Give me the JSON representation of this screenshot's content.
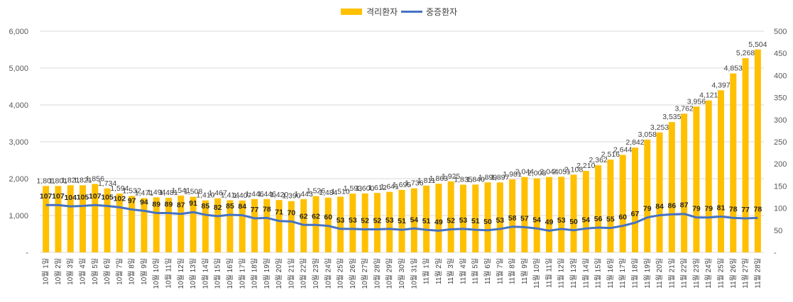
{
  "chart_data": {
    "type": "bar",
    "categories": [
      "10월 1일",
      "10월 2일",
      "10월 3일",
      "10월 4일",
      "10월 5일",
      "10월 6일",
      "10월 7일",
      "10월 8일",
      "10월 9일",
      "10월 10일",
      "10월 11일",
      "10월 12일",
      "10월 13일",
      "10월 14일",
      "10월 15일",
      "10월 16일",
      "10월 17일",
      "10월 18일",
      "10월 19일",
      "10월 20일",
      "10월 21일",
      "10월 22일",
      "10월 23일",
      "10월 24일",
      "10월 25일",
      "10월 26일",
      "10월 27일",
      "10월 28일",
      "10월 29일",
      "10월 30일",
      "10월 31일",
      "11월 1일",
      "11월 2일",
      "11월 3일",
      "11월 4일",
      "11월 5일",
      "11월 6일",
      "11월 7일",
      "11월 8일",
      "11월 9일",
      "11월 10일",
      "11월 11일",
      "11월 12일",
      "11월 13일",
      "11월 14일",
      "11월 15일",
      "11월 16일",
      "11월 17일",
      "11월 18일",
      "11월 19일",
      "11월 20일",
      "11월 21일",
      "11월 22일",
      "11월 23일",
      "11월 24일",
      "11월 25일",
      "11월 26일",
      "11월 27일",
      "11월 28일"
    ],
    "series": [
      {
        "name": "격리환자",
        "type": "bar",
        "axis": "left",
        "color": "#FFC000",
        "values": [
          1801,
          1801,
          1821,
          1821,
          1856,
          1734,
          1594,
          1532,
          1471,
          1494,
          1481,
          1541,
          1508,
          1410,
          1467,
          1414,
          1407,
          1446,
          1446,
          1420,
          1390,
          1443,
          1526,
          1484,
          1510,
          1593,
          1600,
          1612,
          1641,
          1695,
          1736,
          1811,
          1863,
          1925,
          1835,
          1840,
          1899,
          1897,
          1981,
          2044,
          2008,
          2044,
          2051,
          2108,
          2210,
          2362,
          2516,
          2644,
          2842,
          3058,
          3253,
          3535,
          3762,
          3956,
          4121,
          4397,
          4853,
          5268,
          5504
        ],
        "labels": [
          "1,801",
          "1,801",
          "1,821",
          "1,821",
          "1,856",
          "1,734",
          "1,594",
          "1,532",
          "1,471",
          "1,494",
          "1,481",
          "1,541",
          "1,508",
          "1,410",
          "1,467",
          "1,414",
          "1,407",
          "1,446",
          "1,446",
          "1,420",
          "1,390",
          "1,443",
          "1,526",
          "1,484",
          "1,510",
          "1,593",
          "1,600",
          "1,612",
          "1,641",
          "1,695",
          "1,736",
          "1,811",
          "1,863",
          "1,925",
          "1,835",
          "1,840",
          "1,899",
          "1,897",
          "1,981",
          "2,044",
          "2,008",
          "2,044",
          "2,051",
          "2,108",
          "2,210",
          "2,362",
          "2,516",
          "2,644",
          "2,842",
          "3,058",
          "3,253",
          "3,535",
          "3,762",
          "3,956",
          "4,121",
          "4,397",
          "4,853",
          "5,268",
          "5,504"
        ]
      },
      {
        "name": "중증환자",
        "type": "line",
        "axis": "right",
        "color": "#4472C4",
        "values": [
          107,
          107,
          104,
          105,
          107,
          105,
          102,
          97,
          94,
          89,
          89,
          87,
          91,
          85,
          82,
          85,
          84,
          77,
          78,
          71,
          70,
          62,
          62,
          60,
          53,
          53,
          52,
          52,
          53,
          51,
          54,
          51,
          49,
          52,
          53,
          51,
          50,
          53,
          58,
          57,
          54,
          49,
          53,
          50,
          54,
          56,
          55,
          60,
          67,
          79,
          84,
          86,
          87,
          79,
          79,
          81,
          78,
          77,
          78
        ]
      }
    ],
    "y_left": {
      "min": 0,
      "max": 6000,
      "step": 1000,
      "tick_labels": [
        "-",
        "1,000",
        "2,000",
        "3,000",
        "4,000",
        "5,000",
        "6,000"
      ]
    },
    "y_right": {
      "min": 0,
      "max": 500,
      "step": 50,
      "tick_labels": [
        "-",
        "50",
        "100",
        "150",
        "200",
        "250",
        "300",
        "350",
        "400",
        "450",
        "500"
      ]
    },
    "grid": true,
    "legend": "top-center"
  }
}
